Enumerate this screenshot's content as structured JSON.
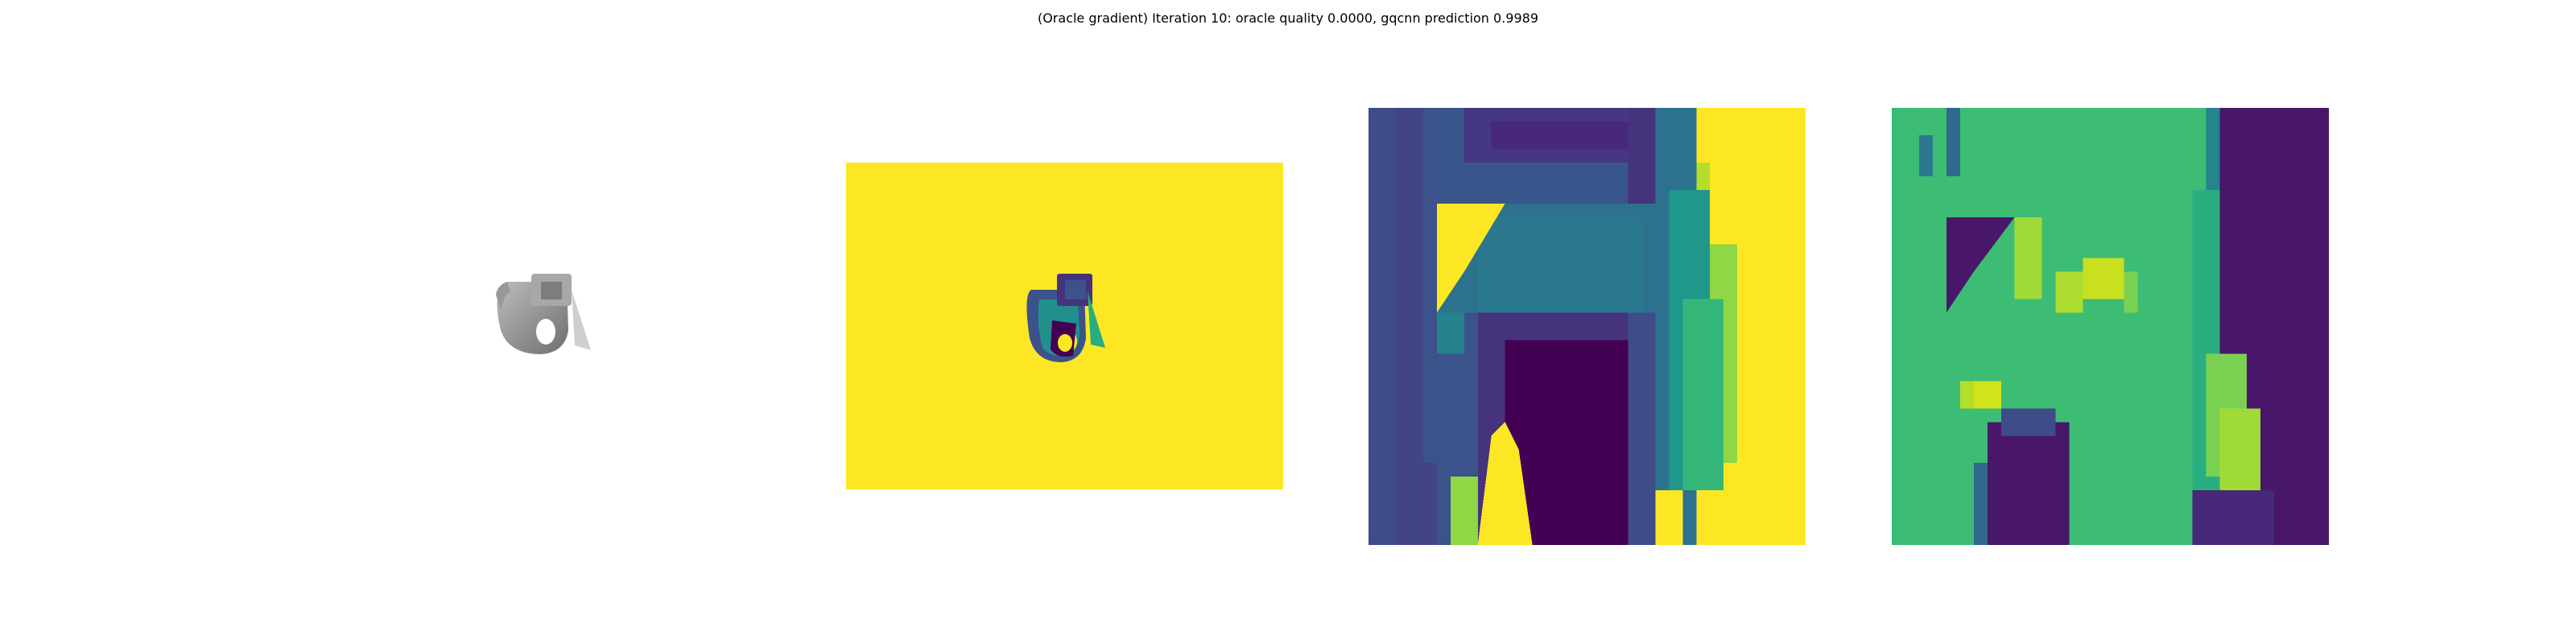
{
  "figure": {
    "title": "(Oracle gradient) Iteration 10: oracle quality 0.0000, gqcnn prediction 0.9989"
  },
  "colors": {
    "viridis_dark": "#440154",
    "viridis_blue": "#3b528b",
    "viridis_teal": "#21908c",
    "viridis_green": "#5dc963",
    "viridis_yellow": "#fde725",
    "gray_render": "#8c8c8c"
  },
  "panels": [
    {
      "name": "rendered-object"
    },
    {
      "name": "depth-image"
    },
    {
      "name": "depth-crop"
    },
    {
      "name": "gradient-map"
    }
  ]
}
